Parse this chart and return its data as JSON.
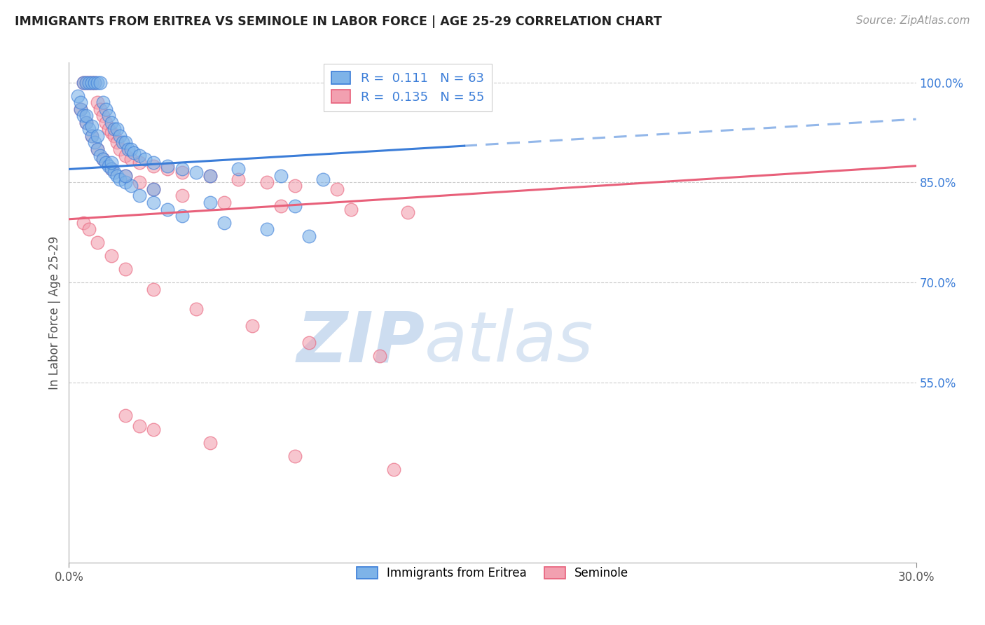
{
  "title": "IMMIGRANTS FROM ERITREA VS SEMINOLE IN LABOR FORCE | AGE 25-29 CORRELATION CHART",
  "source": "Source: ZipAtlas.com",
  "ylabel": "In Labor Force | Age 25-29",
  "xlim": [
    0.0,
    30.0
  ],
  "ylim": [
    28.0,
    103.0
  ],
  "blue_R": 0.111,
  "blue_N": 63,
  "pink_R": 0.135,
  "pink_N": 55,
  "blue_color": "#7EB3E8",
  "pink_color": "#F2A0B0",
  "line_blue": "#3B7DD8",
  "line_pink": "#E8607A",
  "text_blue": "#3B7DD8",
  "watermark_color": "#D8E8F5",
  "ytick_vals": [
    55.0,
    70.0,
    85.0,
    100.0
  ],
  "blue_line_x0": 0.0,
  "blue_line_y0": 87.0,
  "blue_line_x1": 14.0,
  "blue_line_y1": 90.5,
  "blue_line_x2": 30.0,
  "blue_line_y2": 94.5,
  "pink_line_x0": 0.0,
  "pink_line_y0": 79.5,
  "pink_line_x1": 30.0,
  "pink_line_y1": 87.5,
  "blue_scatter_x": [
    0.5,
    0.6,
    0.7,
    0.8,
    0.9,
    1.0,
    1.1,
    1.2,
    1.3,
    1.4,
    1.5,
    1.6,
    1.7,
    1.8,
    1.9,
    2.0,
    2.1,
    2.2,
    2.3,
    2.5,
    2.7,
    3.0,
    3.5,
    4.0,
    4.5,
    5.0,
    6.0,
    7.5,
    9.0,
    0.3,
    0.4,
    0.5,
    0.6,
    0.7,
    0.8,
    0.9,
    1.0,
    1.1,
    1.2,
    1.3,
    1.4,
    1.5,
    1.6,
    1.7,
    1.8,
    2.0,
    2.2,
    2.5,
    3.0,
    3.5,
    4.0,
    5.5,
    7.0,
    8.5,
    0.4,
    0.6,
    0.8,
    1.0,
    1.5,
    2.0,
    3.0,
    5.0,
    8.0
  ],
  "blue_scatter_y": [
    100.0,
    100.0,
    100.0,
    100.0,
    100.0,
    100.0,
    100.0,
    97.0,
    96.0,
    95.0,
    94.0,
    93.0,
    93.0,
    92.0,
    91.0,
    91.0,
    90.0,
    90.0,
    89.5,
    89.0,
    88.5,
    88.0,
    87.5,
    87.0,
    86.5,
    86.0,
    87.0,
    86.0,
    85.5,
    98.0,
    96.0,
    95.0,
    94.0,
    93.0,
    92.0,
    91.0,
    90.0,
    89.0,
    88.5,
    88.0,
    87.5,
    87.0,
    86.5,
    86.0,
    85.5,
    85.0,
    84.5,
    83.0,
    82.0,
    81.0,
    80.0,
    79.0,
    78.0,
    77.0,
    97.0,
    95.0,
    93.5,
    92.0,
    88.0,
    86.0,
    84.0,
    82.0,
    81.5
  ],
  "pink_scatter_x": [
    0.5,
    0.6,
    0.7,
    0.8,
    0.9,
    1.0,
    1.1,
    1.2,
    1.3,
    1.4,
    1.5,
    1.6,
    1.7,
    1.8,
    2.0,
    2.2,
    2.5,
    3.0,
    3.5,
    4.0,
    5.0,
    6.0,
    7.0,
    8.0,
    9.5,
    0.4,
    0.6,
    0.8,
    1.0,
    1.2,
    1.5,
    2.0,
    2.5,
    3.0,
    4.0,
    5.5,
    7.5,
    10.0,
    12.0,
    0.5,
    0.7,
    1.0,
    1.5,
    2.0,
    3.0,
    4.5,
    6.5,
    8.5,
    11.0,
    2.0,
    3.0,
    5.0,
    8.0,
    11.5,
    2.5
  ],
  "pink_scatter_y": [
    100.0,
    100.0,
    100.0,
    100.0,
    100.0,
    97.0,
    96.0,
    95.0,
    94.0,
    93.0,
    92.5,
    92.0,
    91.0,
    90.0,
    89.0,
    88.5,
    88.0,
    87.5,
    87.0,
    86.5,
    86.0,
    85.5,
    85.0,
    84.5,
    84.0,
    96.0,
    94.0,
    92.0,
    90.0,
    88.5,
    87.0,
    86.0,
    85.0,
    84.0,
    83.0,
    82.0,
    81.5,
    81.0,
    80.5,
    79.0,
    78.0,
    76.0,
    74.0,
    72.0,
    69.0,
    66.0,
    63.5,
    61.0,
    59.0,
    50.0,
    48.0,
    46.0,
    44.0,
    42.0,
    48.5
  ]
}
